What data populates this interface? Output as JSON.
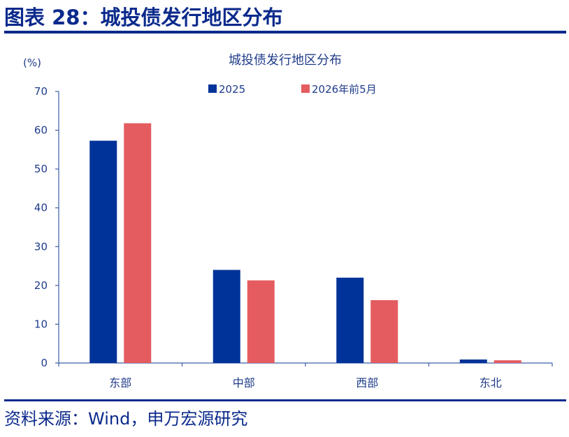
{
  "figure": {
    "title": "图表 28：城投债发行地区分布",
    "source": "资料来源：Wind，申万宏源研究"
  },
  "colors": {
    "brand": "#0b2a8c",
    "series_2025": "#003399",
    "series_2026": "#e45c5f",
    "axis": "#3d5ea8"
  },
  "chart_data": {
    "type": "bar",
    "title": "城投债发行地区分布",
    "ylabel": "(%)",
    "xlabel": "",
    "ylim": [
      0,
      70
    ],
    "yticks": [
      0,
      10,
      20,
      30,
      40,
      50,
      60,
      70
    ],
    "categories": [
      "东部",
      "中部",
      "西部",
      "东北"
    ],
    "series": [
      {
        "name": "2025",
        "values": [
          57.3,
          24.0,
          22.0,
          0.9
        ]
      },
      {
        "name": "2026年前5月",
        "values": [
          61.8,
          21.3,
          16.2,
          0.7
        ]
      }
    ],
    "legend": "top",
    "grid": false
  }
}
